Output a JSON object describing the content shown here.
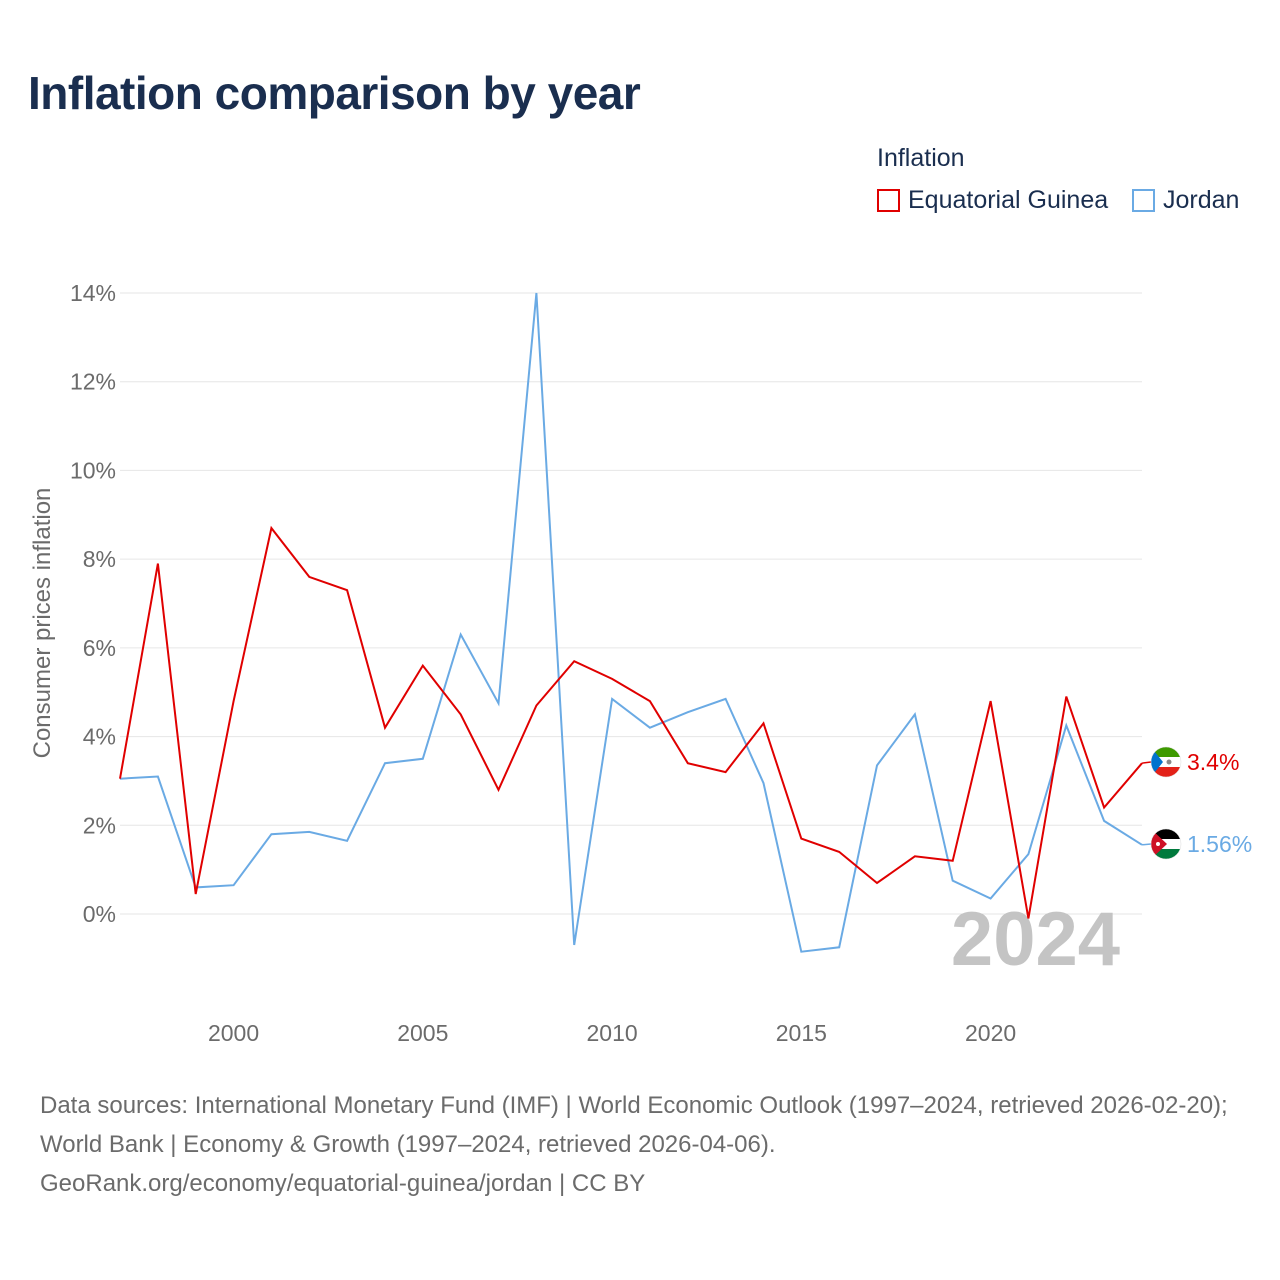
{
  "chart_data": {
    "type": "line",
    "title": "Inflation comparison by year",
    "legend_title": "Inflation",
    "ylabel": "Consumer prices inflation",
    "xlabel": "",
    "xlim": [
      1997,
      2024
    ],
    "ylim": [
      -2,
      14
    ],
    "x_ticks": [
      2000,
      2005,
      2010,
      2015,
      2020
    ],
    "y_ticks": [
      0,
      2,
      4,
      6,
      8,
      10,
      12,
      14
    ],
    "y_tick_labels": [
      "0%",
      "2%",
      "4%",
      "6%",
      "8%",
      "10%",
      "12%",
      "14%"
    ],
    "year_watermark": "2024",
    "x": [
      1997,
      1998,
      1999,
      2000,
      2001,
      2002,
      2003,
      2004,
      2005,
      2006,
      2007,
      2008,
      2009,
      2010,
      2011,
      2012,
      2013,
      2014,
      2015,
      2016,
      2017,
      2018,
      2019,
      2020,
      2021,
      2022,
      2023,
      2024
    ],
    "series": [
      {
        "name": "Equatorial Guinea",
        "color": "#e00000",
        "end_label": "3.4%",
        "flag": "equatorial-guinea-flag-icon",
        "values": [
          3.05,
          7.9,
          0.45,
          4.8,
          8.7,
          7.6,
          7.3,
          4.2,
          5.6,
          4.5,
          2.8,
          4.7,
          5.7,
          5.3,
          4.8,
          3.4,
          3.2,
          4.3,
          1.7,
          1.4,
          0.7,
          1.3,
          1.2,
          4.8,
          -0.1,
          4.9,
          2.4,
          3.4
        ]
      },
      {
        "name": "Jordan",
        "color": "#6aaae4",
        "end_label": "1.56%",
        "flag": "jordan-flag-icon",
        "values": [
          3.05,
          3.1,
          0.6,
          0.65,
          1.8,
          1.85,
          1.65,
          3.4,
          3.5,
          6.3,
          4.75,
          14.0,
          -0.7,
          4.85,
          4.2,
          4.55,
          4.85,
          2.95,
          -0.85,
          -0.75,
          3.35,
          4.5,
          0.75,
          0.35,
          1.35,
          4.25,
          2.1,
          1.56
        ]
      }
    ]
  },
  "footer": {
    "line1": "Data sources: International Monetary Fund (IMF) | World Economic Outlook (1997–2024, retrieved 2026-02-20); World Bank | Economy & Growth (1997–2024, retrieved 2026-04-06).",
    "line2": "GeoRank.org/economy/equatorial-guinea/jordan | CC BY"
  }
}
